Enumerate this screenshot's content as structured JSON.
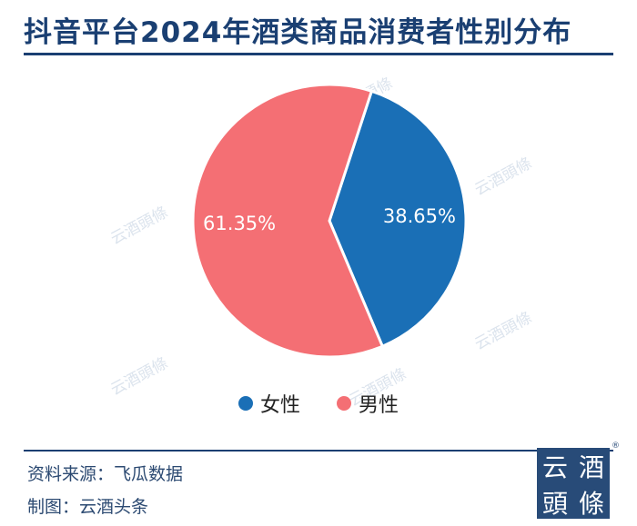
{
  "title": "抖音平台2024年酒类商品消费者性别分布",
  "watermark_text": "云酒頭條",
  "footer": {
    "source": "资料来源：飞瓜数据",
    "made_by": "制图：云酒头条"
  },
  "logo": {
    "chars": [
      "云",
      "酒",
      "頭",
      "條"
    ],
    "registered_mark": "®"
  },
  "chart_data": {
    "type": "pie",
    "title": "抖音平台2024年酒类商品消费者性别分布",
    "series": [
      {
        "name": "女性",
        "value": 38.65,
        "label": "38.65%",
        "color": "#1a6fb6"
      },
      {
        "name": "男性",
        "value": 61.35,
        "label": "61.35%",
        "color": "#f46f74"
      }
    ],
    "start_angle_deg": 18,
    "legend_position": "bottom"
  }
}
